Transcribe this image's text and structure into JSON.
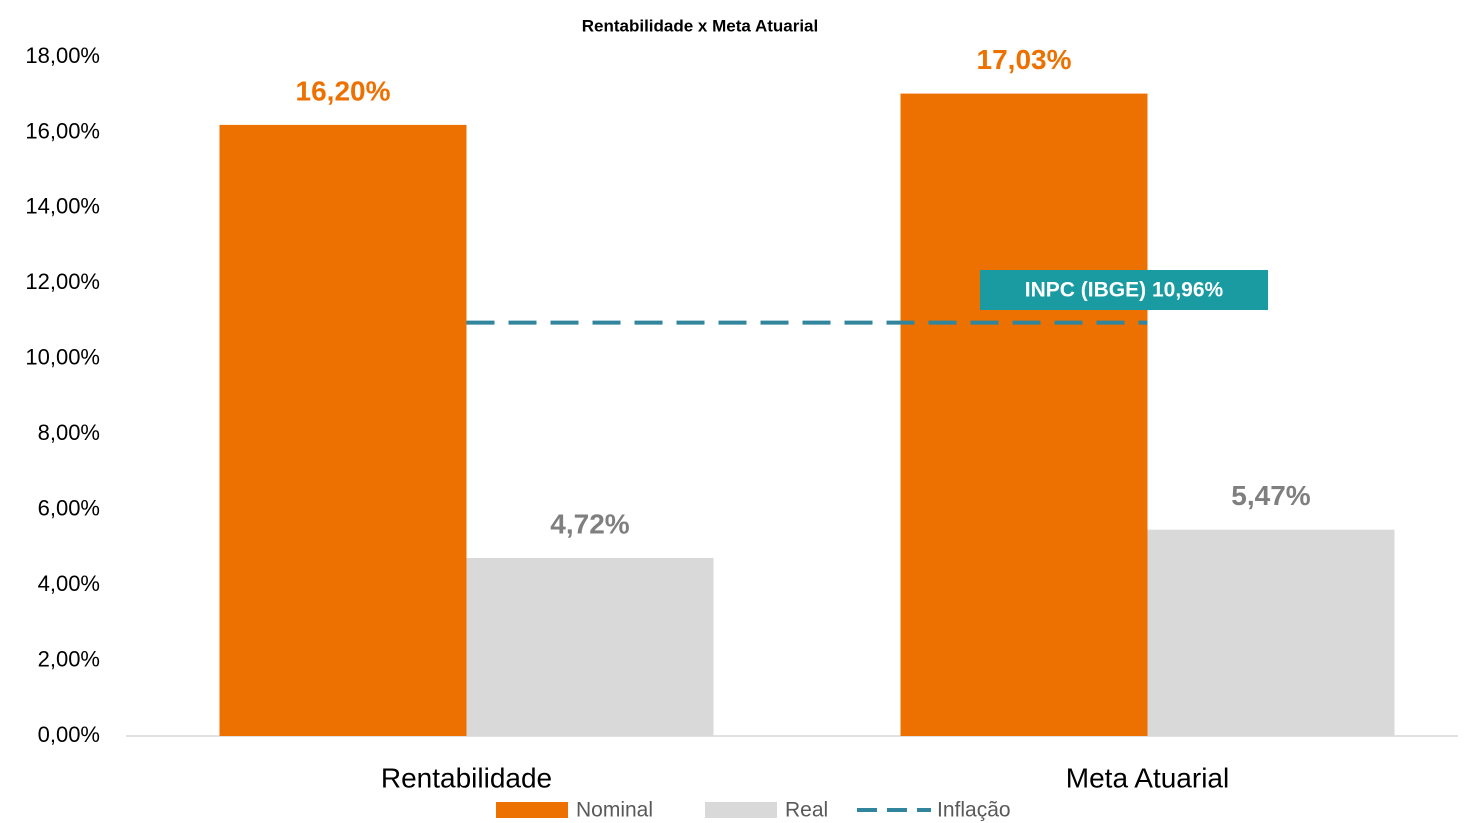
{
  "chart_data": {
    "type": "bar",
    "title": "Rentabilidade x Meta Atuarial",
    "categories": [
      "Rentabilidade",
      "Meta Atuarial"
    ],
    "series": [
      {
        "name": "Nominal",
        "color": "#ED7100",
        "values": [
          16.2,
          17.03
        ],
        "value_labels": [
          "16,20%",
          "17,03%"
        ]
      },
      {
        "name": "Real",
        "color": "#D9D9D9",
        "values": [
          4.72,
          5.47
        ],
        "value_labels": [
          "4,72%",
          "5,47%"
        ]
      },
      {
        "name": "Inflação",
        "type": "line",
        "color": "#31859C",
        "dashed": true,
        "values": [
          10.96,
          10.96
        ]
      }
    ],
    "annotation": {
      "text": "INPC (IBGE) 10,96%",
      "color": "#1A9BA1"
    },
    "ylim": [
      0,
      18
    ],
    "yticks": [
      {
        "value": 0,
        "label": "0,00%"
      },
      {
        "value": 2,
        "label": "2,00%"
      },
      {
        "value": 4,
        "label": "4,00%"
      },
      {
        "value": 6,
        "label": "6,00%"
      },
      {
        "value": 8,
        "label": "8,00%"
      },
      {
        "value": 10,
        "label": "10,00%"
      },
      {
        "value": 12,
        "label": "12,00%"
      },
      {
        "value": 14,
        "label": "14,00%"
      },
      {
        "value": 16,
        "label": "16,00%"
      },
      {
        "value": 18,
        "label": "18,00%"
      }
    ],
    "grid": false,
    "legend": "bottom"
  }
}
